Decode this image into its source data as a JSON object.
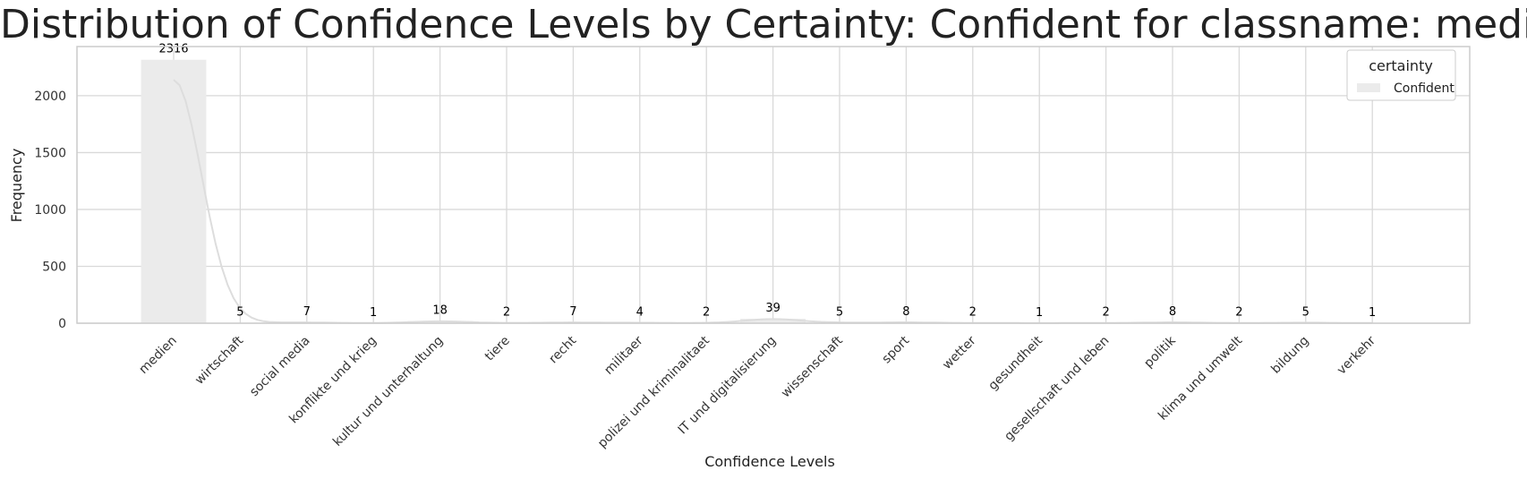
{
  "chart_data": {
    "type": "bar",
    "title": "Distribution of Confidence Levels by Certainty: Confident for classname: medien",
    "xlabel": "Confidence Levels",
    "ylabel": "Frequency",
    "categories": [
      "medien",
      "wirtschaft",
      "social media",
      "konflikte und krieg",
      "kultur und unterhaltung",
      "tiere",
      "recht",
      "militaer",
      "polizei und kriminalitaet",
      "IT und digitalisierung",
      "wissenschaft",
      "sport",
      "wetter",
      "gesundheit",
      "gesellschaft und leben",
      "politik",
      "klima und umwelt",
      "bildung",
      "verkehr"
    ],
    "series": [
      {
        "name": "Confident",
        "values": [
          2316,
          5,
          7,
          1,
          18,
          2,
          7,
          4,
          2,
          39,
          5,
          8,
          2,
          1,
          2,
          8,
          2,
          5,
          1
        ],
        "color": "#ebebeb"
      }
    ],
    "data_labels": [
      "2316",
      "5",
      "7",
      "1",
      "18",
      "2",
      "7",
      "4",
      "2",
      "39",
      "5",
      "8",
      "2",
      "1",
      "2",
      "8",
      "2",
      "5",
      "1"
    ],
    "yticks": [
      0,
      500,
      1000,
      1500,
      2000
    ],
    "ylim": [
      0,
      2432
    ],
    "grid": true,
    "kde_curve": true,
    "legend": {
      "title": "certainty",
      "placement": "top-right",
      "entries": [
        "Confident"
      ]
    },
    "colors": {
      "bar": "#ebebeb",
      "kde_line": "#dddddd",
      "grid": "#d9d9d9",
      "frame": "#cccccc"
    }
  }
}
